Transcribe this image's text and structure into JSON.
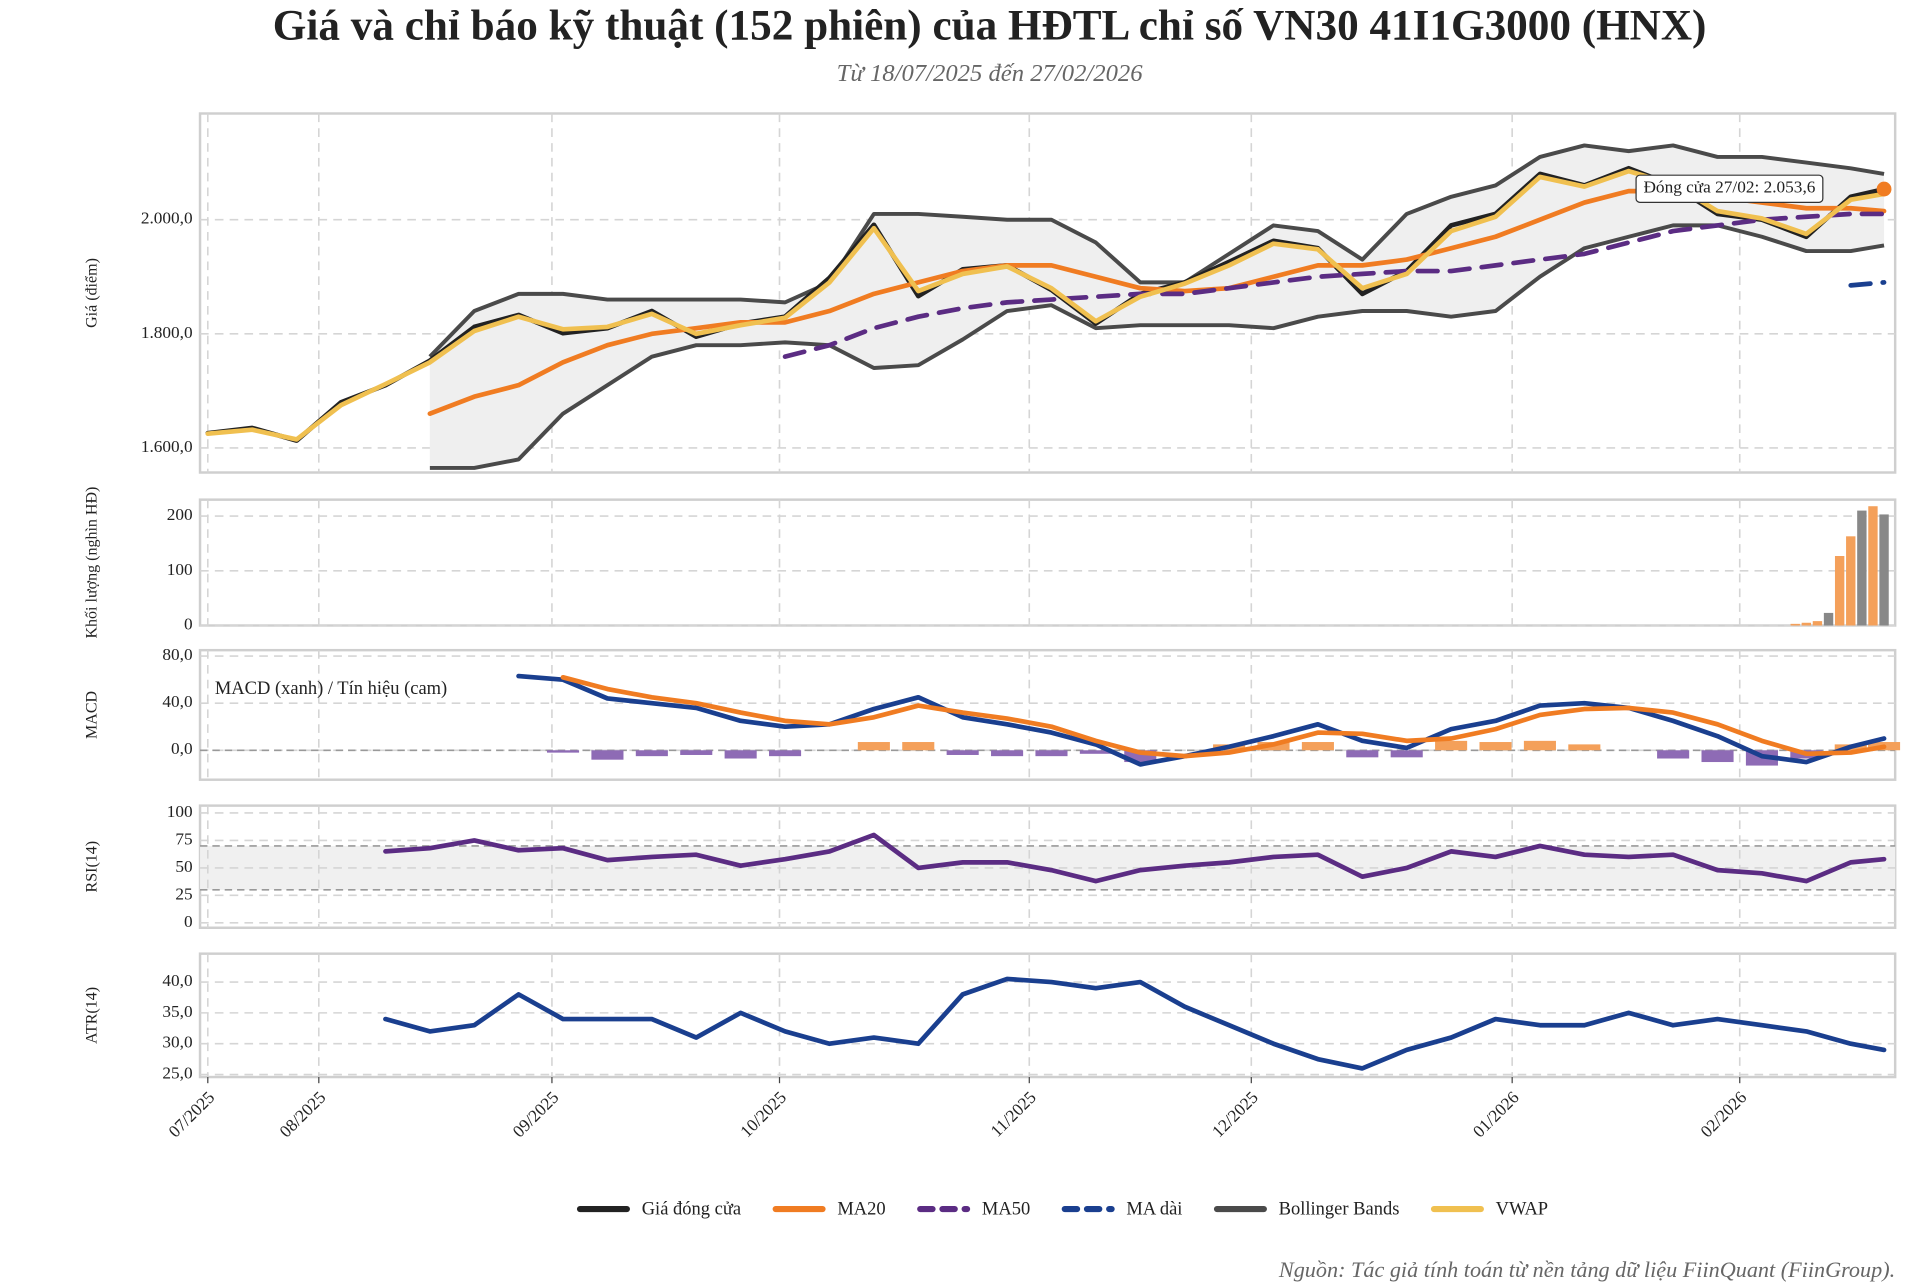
{
  "chart_data": {
    "type": "line",
    "title": "Giá và chỉ báo kỹ thuật (152 phiên) của HĐTL chỉ số VN30 41I1G3000 (HNX)",
    "subtitle": "Từ 18/07/2025 đến 27/02/2026",
    "source": "Nguồn: Tác giả tính toán từ nền tảng dữ liệu FiinQuant (FiinGroup).",
    "grid": true,
    "xlim": [
      -0.7,
      152.0
    ],
    "xticks": [
      {
        "value": 0,
        "label": "07/2025"
      },
      {
        "value": 10,
        "label": "08/2025"
      },
      {
        "value": 31,
        "label": "09/2025"
      },
      {
        "value": 51.5,
        "label": "10/2025"
      },
      {
        "value": 74,
        "label": "11/2025"
      },
      {
        "value": 94,
        "label": "12/2025"
      },
      {
        "value": 117.5,
        "label": "01/2026"
      },
      {
        "value": 138,
        "label": "02/2026"
      }
    ],
    "x": [
      0,
      4,
      8,
      12,
      16,
      20,
      24,
      28,
      32,
      36,
      40,
      44,
      48,
      52,
      56,
      60,
      64,
      68,
      72,
      76,
      80,
      84,
      88,
      92,
      96,
      100,
      104,
      108,
      112,
      116,
      120,
      124,
      128,
      132,
      136,
      140,
      144,
      148,
      151
    ],
    "panels": [
      {
        "type": "line",
        "ylabel": "Giá (điểm)",
        "ylim": [
          1557,
          2186
        ],
        "yticks": [
          {
            "value": 1600,
            "label": "1.600,0"
          },
          {
            "value": 1800,
            "label": "1.800,0"
          },
          {
            "value": 2000,
            "label": "2.000,0"
          }
        ],
        "annotation": "Đóng cửa 27/02: 2.053,6",
        "series": [
          {
            "name": "Giá đóng cửa",
            "color": "#222222",
            "values": [
              1626,
              1635,
              1613,
              1680,
              1710,
              1753,
              1812,
              1833,
              1801,
              1810,
              1840,
              1795,
              1818,
              1830,
              1898,
              1991,
              1866,
              1913,
              1920,
              1877,
              1818,
              1870,
              1890,
              1926,
              1963,
              1950,
              1870,
              1910,
              1990,
              2010,
              2080,
              2060,
              2090,
              2060,
              2010,
              2000,
              1970,
              2040,
              2053.6
            ]
          },
          {
            "name": "MA20",
            "color": "#f07c22",
            "values": [
              null,
              null,
              null,
              null,
              null,
              1660,
              1690,
              1710,
              1750,
              1780,
              1800,
              1810,
              1820,
              1820,
              1840,
              1870,
              1890,
              1910,
              1920,
              1920,
              1900,
              1880,
              1875,
              1880,
              1900,
              1920,
              1920,
              1930,
              1950,
              1970,
              2000,
              2030,
              2050,
              2050,
              2040,
              2030,
              2020,
              2020,
              2015
            ]
          },
          {
            "name": "MA50",
            "color": "#5b2c83",
            "dash": true,
            "values": [
              null,
              null,
              null,
              null,
              null,
              null,
              null,
              null,
              null,
              null,
              null,
              null,
              null,
              1760,
              1780,
              1810,
              1830,
              1845,
              1855,
              1860,
              1865,
              1870,
              1870,
              1880,
              1890,
              1900,
              1905,
              1910,
              1910,
              1920,
              1930,
              1940,
              1960,
              1980,
              1990,
              2000,
              2005,
              2010,
              2010
            ]
          },
          {
            "name": "MA dài",
            "color": "#1a3f8f",
            "dash": true,
            "values": [
              null,
              null,
              null,
              null,
              null,
              null,
              null,
              null,
              null,
              null,
              null,
              null,
              null,
              null,
              null,
              null,
              null,
              null,
              null,
              null,
              null,
              null,
              null,
              null,
              null,
              null,
              null,
              null,
              null,
              null,
              null,
              null,
              null,
              null,
              null,
              null,
              null,
              1885,
              1890
            ]
          },
          {
            "name": "Bollinger Bands",
            "color": "#4a4a4a",
            "upper": [
              null,
              null,
              null,
              null,
              null,
              1760,
              1840,
              1870,
              1870,
              1860,
              1860,
              1860,
              1860,
              1855,
              1890,
              2010,
              2010,
              2005,
              2000,
              2000,
              1960,
              1890,
              1890,
              1940,
              1990,
              1980,
              1930,
              2010,
              2040,
              2060,
              2110,
              2130,
              2120,
              2130,
              2110,
              2110,
              2100,
              2090,
              2080
            ],
            "lower": [
              null,
              null,
              null,
              null,
              null,
              1565,
              1565,
              1580,
              1660,
              1710,
              1760,
              1780,
              1780,
              1785,
              1780,
              1740,
              1745,
              1790,
              1840,
              1850,
              1810,
              1815,
              1815,
              1815,
              1810,
              1830,
              1840,
              1840,
              1830,
              1840,
              1900,
              1950,
              1970,
              1990,
              1990,
              1970,
              1945,
              1945,
              1955
            ]
          },
          {
            "name": "VWAP",
            "color": "#f0c050",
            "values": [
              1625,
              1632,
              1615,
              1675,
              1712,
              1750,
              1805,
              1830,
              1808,
              1812,
              1835,
              1800,
              1815,
              1828,
              1890,
              1985,
              1875,
              1905,
              1918,
              1880,
              1822,
              1865,
              1888,
              1920,
              1958,
              1948,
              1880,
              1905,
              1980,
              2005,
              2075,
              2058,
              2085,
              2062,
              2015,
              2002,
              1975,
              2035,
              2045
            ]
          }
        ]
      },
      {
        "type": "bar",
        "ylabel": "Khối lượng (nghìn HĐ)",
        "ylim": [
          0,
          230
        ],
        "yticks": [
          0,
          100,
          200
        ],
        "x": [
          143,
          144,
          145,
          146,
          147,
          148,
          149,
          150,
          151
        ],
        "values": [
          3,
          5,
          8,
          23,
          127,
          163,
          210,
          218,
          203
        ],
        "colors": [
          "#f4a05a",
          "#f4a05a",
          "#f4a05a",
          "#888888",
          "#f4a05a",
          "#f4a05a",
          "#888888",
          "#f4a05a",
          "#888888"
        ]
      },
      {
        "type": "line",
        "ylabel": "MACD",
        "ylim": [
          -25,
          85
        ],
        "yticks": [
          {
            "value": 0,
            "label": "0,0"
          },
          {
            "value": 40,
            "label": "40,0"
          },
          {
            "value": 80,
            "label": "80,0"
          }
        ],
        "note": "MACD (xanh) / Tín hiệu (cam)",
        "zero_line": true,
        "lines": [
          {
            "color": "#1a3f8f",
            "values": [
              null,
              null,
              null,
              null,
              null,
              null,
              null,
              63,
              60,
              44,
              40,
              36,
              25,
              20,
              22,
              35,
              45,
              28,
              22,
              15,
              5,
              -12,
              -5,
              3,
              12,
              22,
              8,
              2,
              18,
              25,
              38,
              40,
              36,
              25,
              12,
              -5,
              -10,
              3,
              10
            ]
          },
          {
            "color": "#f07c22",
            "values": [
              null,
              null,
              null,
              null,
              null,
              null,
              null,
              null,
              62,
              52,
              45,
              40,
              32,
              25,
              22,
              28,
              38,
              32,
              27,
              20,
              8,
              -2,
              -5,
              -2,
              5,
              15,
              14,
              8,
              10,
              18,
              30,
              35,
              36,
              32,
              22,
              8,
              -3,
              -2,
              3
            ]
          }
        ],
        "bars": {
          "positive_color": "#f4a05a",
          "negative_color": "#8e6bb5",
          "values": [
            null,
            null,
            null,
            null,
            null,
            null,
            null,
            null,
            -2,
            -8,
            -5,
            -4,
            -7,
            -5,
            0,
            7,
            7,
            -4,
            -5,
            -5,
            -3,
            -10,
            0,
            5,
            7,
            7,
            -6,
            -6,
            8,
            7,
            8,
            5,
            0,
            -7,
            -10,
            -13,
            -7,
            5,
            7
          ]
        }
      },
      {
        "type": "line",
        "ylabel": "RSI(14)",
        "ylim": [
          -4.5,
          106.7
        ],
        "yticks": [
          0,
          25,
          50,
          75,
          100
        ],
        "bands": [
          30,
          70
        ],
        "lines": [
          {
            "color": "#5b2c83",
            "values": [
              null,
              null,
              null,
              null,
              65,
              68,
              75,
              66,
              68,
              57,
              60,
              62,
              52,
              58,
              65,
              80,
              50,
              55,
              55,
              48,
              38,
              48,
              52,
              55,
              60,
              62,
              42,
              50,
              65,
              60,
              70,
              62,
              60,
              62,
              48,
              45,
              38,
              55,
              58
            ]
          }
        ]
      },
      {
        "type": "line",
        "ylabel": "ATR(14)",
        "ylim": [
          24.6,
          44.6
        ],
        "yticks": [
          {
            "value": 25,
            "label": "25,0"
          },
          {
            "value": 30,
            "label": "30,0"
          },
          {
            "value": 35,
            "label": "35,0"
          },
          {
            "value": 40,
            "label": "40,0"
          }
        ],
        "lines": [
          {
            "color": "#1a3f8f",
            "values": [
              null,
              null,
              null,
              null,
              34,
              32,
              33,
              38,
              34,
              34,
              34,
              31,
              35,
              32,
              30,
              31,
              30,
              38,
              40.5,
              40,
              39,
              40,
              36,
              33,
              30,
              27.5,
              26,
              29,
              31,
              34,
              33,
              33,
              35,
              33,
              34,
              33,
              32,
              30,
              29
            ]
          }
        ]
      }
    ]
  }
}
